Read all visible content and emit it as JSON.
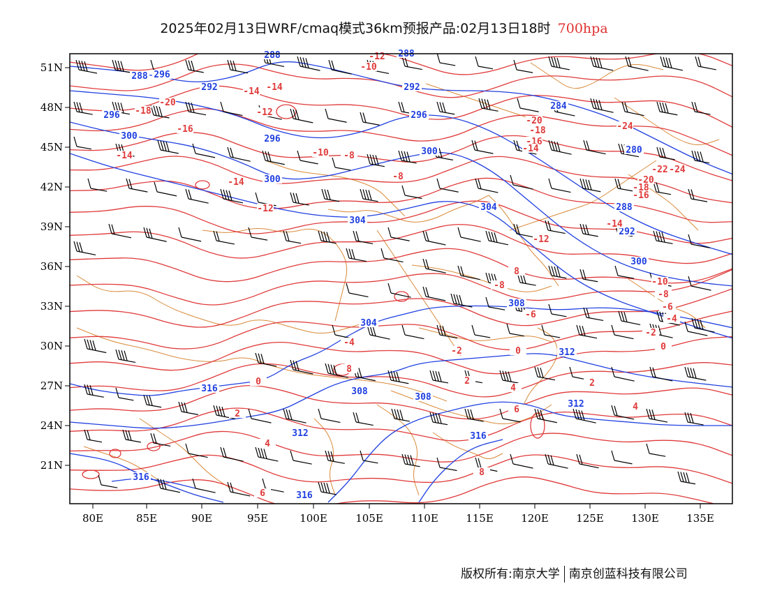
{
  "title": {
    "prefix": "2025年02月13日WRF/cmaq模式36km预报产品:02月13日18时",
    "level": "700hpa",
    "level_color": "#e03030"
  },
  "colors": {
    "temperature": "#e03a3a",
    "height": "#2040e0",
    "border": "#d98a3a",
    "wind": "#000000"
  },
  "axes": {
    "lon_labels": [
      "80E",
      "85E",
      "90E",
      "95E",
      "100E",
      "105E",
      "110E",
      "115E",
      "120E",
      "125E",
      "130E",
      "135E"
    ],
    "lat_labels": [
      "51N",
      "48N",
      "45N",
      "42N",
      "39N",
      "36N",
      "33N",
      "30N",
      "27N",
      "24N",
      "21N"
    ]
  },
  "contour_labels": {
    "height": [
      "288",
      "288",
      "288",
      "292",
      "292",
      "296",
      "296",
      "296",
      "300",
      "300",
      "300",
      "300",
      "304",
      "304",
      "304",
      "308",
      "308",
      "308",
      "312",
      "312",
      "312",
      "316",
      "316",
      "316",
      "316",
      "284",
      "280",
      "288",
      "292",
      "296"
    ],
    "temperature": [
      "-12",
      "-10",
      "-14",
      "-14",
      "-20",
      "-18",
      "-12",
      "-16",
      "-20",
      "-18",
      "-16",
      "-14",
      "-10",
      "-8",
      "-14",
      "-12",
      "-14",
      "-8",
      "-12",
      "-22",
      "-24",
      "-24",
      "-20",
      "-18",
      "-16",
      "-14",
      "-12",
      "-10",
      "-8",
      "-6",
      "-4",
      "-2",
      "0",
      "2",
      "4",
      "6",
      "8",
      "-8",
      "-6",
      "-4",
      "-2",
      "0",
      "2",
      "4",
      "6",
      "8",
      "0",
      "2",
      "4",
      "6",
      "8"
    ]
  },
  "footer": {
    "left": "版权所有:南京大学",
    "right": "南京创蓝科技有限公司"
  }
}
